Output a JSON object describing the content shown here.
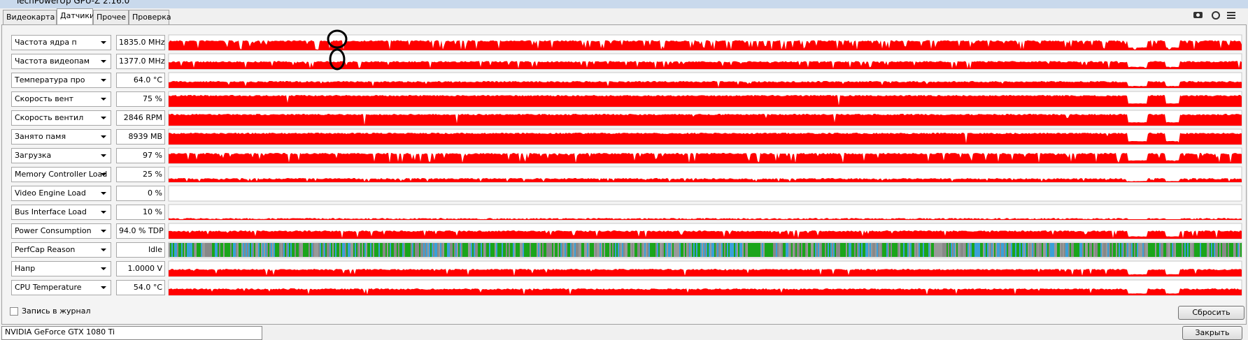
{
  "window": {
    "title": "TechPowerUp GPU-Z 2.16.0"
  },
  "tabs": [
    "Видеокарта",
    "Датчики",
    "Прочее",
    "Проверка"
  ],
  "sensors": [
    {
      "name": "Частота ядра п",
      "value": "1835.0 MHz"
    },
    {
      "name": "Частота видеопам",
      "value": "1377.0 MHz"
    },
    {
      "name": "Температура про",
      "value": "64.0 °C"
    },
    {
      "name": "Скорость вент",
      "value": "75 %"
    },
    {
      "name": "Скорость вентил",
      "value": "2846 RPM"
    },
    {
      "name": "Занято памя",
      "value": "8939 MB"
    },
    {
      "name": "Загрузка",
      "value": "97 %"
    },
    {
      "name": "Memory Controller Load",
      "value": "25 %"
    },
    {
      "name": "Video Engine Load",
      "value": "0 %"
    },
    {
      "name": "Bus Interface Load",
      "value": "10 %"
    },
    {
      "name": "Power Consumption",
      "value": "94.0 % TDP"
    },
    {
      "name": "PerfCap Reason",
      "value": "Idle"
    },
    {
      "name": "Напр",
      "value": "1.0000 V"
    },
    {
      "name": "CPU Temperature",
      "value": "54.0 °C"
    }
  ],
  "log_label": "Запись в журнал",
  "reset_button": "Сбросить",
  "device": "NVIDIA GeForce GTX 1080 Ti",
  "close_button": "Закрыть"
}
